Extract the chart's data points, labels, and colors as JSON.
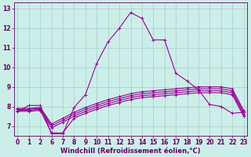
{
  "background_color": "#cceee8",
  "grid_color": "#aacccc",
  "line_color": "#990099",
  "ylabel_min": 7,
  "ylabel_max": 13,
  "xlabel": "Windchill (Refroidissement éolien,°C)",
  "xtick_labels": [
    "0",
    "1",
    "2",
    "6",
    "7",
    "8",
    "9",
    "10",
    "11",
    "12",
    "13",
    "14",
    "15",
    "16",
    "17",
    "18",
    "19",
    "20",
    "21",
    "22",
    "23"
  ],
  "ytick_labels": [
    "7",
    "8",
    "9",
    "10",
    "11",
    "12",
    "13"
  ],
  "ylim": [
    6.5,
    13.3
  ],
  "line1_y": [
    7.75,
    8.05,
    8.05,
    6.6,
    6.6,
    7.95,
    8.6,
    10.2,
    11.3,
    12.0,
    12.8,
    12.5,
    11.4,
    11.4,
    9.7,
    9.3,
    8.85,
    8.1,
    8.0,
    7.65,
    7.7
  ],
  "line2_y": [
    7.75,
    7.75,
    7.8,
    6.65,
    6.65,
    7.4,
    7.65,
    7.85,
    8.05,
    8.2,
    8.35,
    8.45,
    8.5,
    8.55,
    8.6,
    8.65,
    8.7,
    8.7,
    8.7,
    8.6,
    7.5
  ],
  "line3_y": [
    7.8,
    7.8,
    7.85,
    6.9,
    7.2,
    7.5,
    7.75,
    7.95,
    8.15,
    8.3,
    8.45,
    8.55,
    8.6,
    8.65,
    8.7,
    8.75,
    8.8,
    8.8,
    8.8,
    8.7,
    7.6
  ],
  "line4_y": [
    7.85,
    7.85,
    7.9,
    7.0,
    7.3,
    7.6,
    7.85,
    8.05,
    8.25,
    8.4,
    8.55,
    8.65,
    8.7,
    8.75,
    8.8,
    8.85,
    8.9,
    8.9,
    8.9,
    8.8,
    7.7
  ],
  "line5_y": [
    7.9,
    7.9,
    7.95,
    7.1,
    7.4,
    7.7,
    7.95,
    8.15,
    8.35,
    8.5,
    8.65,
    8.75,
    8.8,
    8.85,
    8.9,
    8.95,
    9.0,
    9.0,
    9.0,
    8.9,
    7.8
  ],
  "marker": "+",
  "marker_size": 3.5,
  "linewidth": 0.8,
  "font_color": "#660066",
  "tick_fontsize": 5.5,
  "xlabel_fontsize": 6.0
}
